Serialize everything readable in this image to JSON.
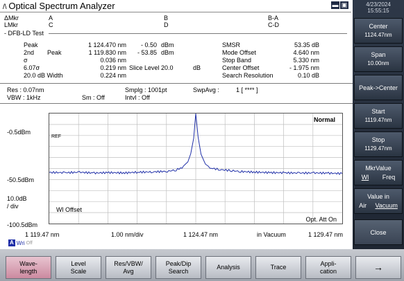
{
  "app": {
    "title": "Optical Spectrum Analyzer",
    "date": "4/23/2024",
    "time": "15:55:15"
  },
  "window_controls": [
    "▬",
    "▣"
  ],
  "markers": {
    "amkr": "ΔMkr",
    "a": "A",
    "b": "B",
    "bma": "B-A",
    "lmkr": "LMkr",
    "c": "C",
    "d": "D",
    "cmd": "C-D"
  },
  "section_title": "DFB-LD Test",
  "results_left": [
    {
      "label": "Peak",
      "mid": "",
      "value": "1 124.470 nm",
      "value2": "- 0.50",
      "unit2": "dBm"
    },
    {
      "label": "2nd",
      "mid": "Peak",
      "value": "1 119.830 nm",
      "value2": "- 53.85",
      "unit2": "dBm"
    },
    {
      "label": "σ",
      "mid": "",
      "value": "0.036 nm",
      "value2": "",
      "unit2": ""
    },
    {
      "label": "6.07σ",
      "mid": "",
      "value": "0.219 nm",
      "value2": "Slice Level   20.0",
      "unit2": "dB"
    },
    {
      "label": "20.0  dB Width",
      "mid": "",
      "value": "0.224 nm",
      "value2": "",
      "unit2": ""
    }
  ],
  "results_right": [
    {
      "label": "SMSR",
      "value": "53.35 dB"
    },
    {
      "label": "Mode Offset",
      "value": "4.640 nm"
    },
    {
      "label": "Stop Band",
      "value": "5.330 nm"
    },
    {
      "label": "Center Offset",
      "value": "- 1.975 nm"
    },
    {
      "label": "Search Resolution",
      "value": "0.10 dB"
    }
  ],
  "settings": {
    "res": "Res :  0.07nm",
    "vbw": "VBW :   1kHz",
    "sm": "Sm :   Off",
    "smplg": "Smplg :   1001pt",
    "intvl": "Intvl :   Off",
    "swpavg": "SwpAvg :",
    "swpavg_val": "1 [   ****  ]"
  },
  "plot_labels": {
    "ref_level": "-0.5dBm",
    "mid_level": "-50.5dBm",
    "scale": "10.0dB\n/ div",
    "bottom_level": "-100.5dBm",
    "ref_tag": "REF",
    "mode": "Normal",
    "wl_offset": "Wl Offset",
    "opt_att": "Opt. Att On",
    "x_start": "1 119.47 nm",
    "x_div": "1.00 nm/div",
    "x_center": "1 124.47 nm",
    "medium": "in Vacuum",
    "x_stop": "1 129.47 nm",
    "trace_tag": "A",
    "trace_wri": "Wri",
    "trace_off": "Off"
  },
  "side_buttons": [
    {
      "l1": "Center",
      "l2": "1124.47nm"
    },
    {
      "l1": "Span",
      "l2": "10.00nm"
    },
    {
      "l1": "Peak->Center",
      "l2": ""
    },
    {
      "l1": "Start",
      "l2": "1119.47nm"
    },
    {
      "l1": "Stop",
      "l2": "1129.47nm"
    },
    {
      "l1": "MkrValue",
      "l2a": "Wl",
      "l2b": "Freq"
    },
    {
      "l1": "Value in",
      "l2a": "Air",
      "l2b": "Vacuum"
    },
    {
      "l1": "Close",
      "l2": ""
    }
  ],
  "function_buttons": [
    {
      "label": "Wave-\nlength"
    },
    {
      "label": "Level\nScale"
    },
    {
      "label": "Res/VBW/\nAvg"
    },
    {
      "label": "Peak/Dip\nSearch"
    },
    {
      "label": "Analysis"
    },
    {
      "label": "Trace"
    },
    {
      "label": "Appli-\ncation"
    },
    {
      "label": "→"
    }
  ],
  "chart_data": {
    "type": "line",
    "x_unit": "nm",
    "y_unit": "dBm",
    "xlim": [
      1119.47,
      1129.47
    ],
    "ylim": [
      -100.5,
      -0.5
    ],
    "grid": true,
    "series": [
      {
        "color": "#1f2fa8",
        "x": [
          1119.47,
          1120.0,
          1120.5,
          1121.0,
          1121.5,
          1122.0,
          1122.5,
          1123.0,
          1123.5,
          1123.8,
          1124.0,
          1124.2,
          1124.3,
          1124.4,
          1124.47,
          1124.55,
          1124.65,
          1124.8,
          1125.0,
          1125.3,
          1125.7,
          1126.0,
          1126.5,
          1127.0,
          1127.5,
          1128.0,
          1128.5,
          1129.0,
          1129.47
        ],
        "y": [
          -54.0,
          -54.3,
          -53.9,
          -54.6,
          -54.2,
          -54.5,
          -53.8,
          -53.6,
          -53.0,
          -51.8,
          -49.5,
          -44.5,
          -37.0,
          -23.0,
          -0.5,
          -22.0,
          -37.5,
          -46.5,
          -50.2,
          -51.5,
          -52.4,
          -53.2,
          -53.8,
          -54.2,
          -54.4,
          -54.6,
          -54.5,
          -54.7,
          -55.0
        ]
      }
    ]
  }
}
